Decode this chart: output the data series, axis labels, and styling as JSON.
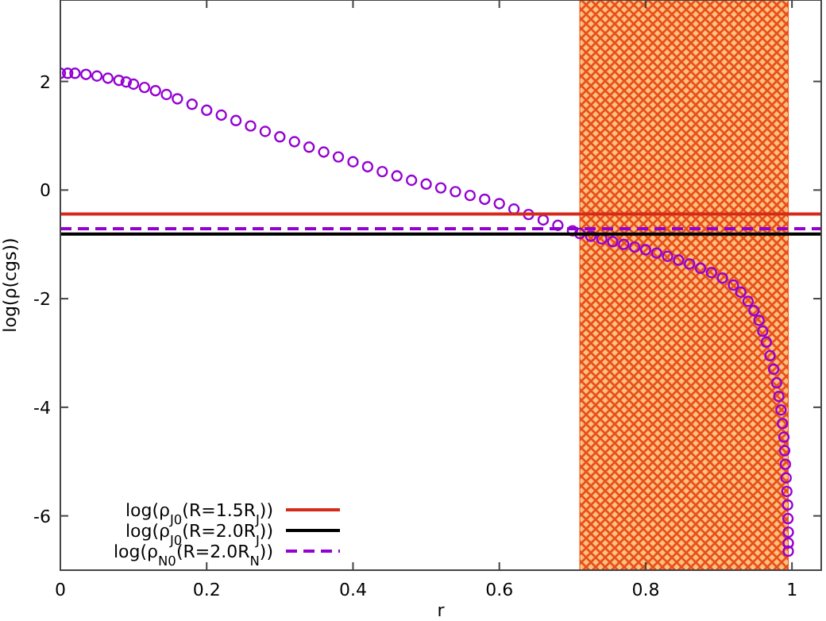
{
  "chart_data": {
    "type": "scatter",
    "xlabel": "r",
    "ylabel": "log(ρ(cgs))",
    "xlim": [
      0,
      1.04
    ],
    "ylim": [
      -7,
      3.5
    ],
    "xticks": [
      0,
      0.2,
      0.4,
      0.6,
      0.8,
      1
    ],
    "yticks": [
      -6,
      -4,
      -2,
      0,
      2
    ],
    "grid": false,
    "legend": "bottom left",
    "series": [
      {
        "color": "#9400d3",
        "marker": "circle",
        "x": [
          0,
          0.01,
          0.02,
          0.035,
          0.05,
          0.065,
          0.08,
          0.09,
          0.1,
          0.115,
          0.13,
          0.145,
          0.16,
          0.18,
          0.2,
          0.22,
          0.24,
          0.26,
          0.28,
          0.3,
          0.32,
          0.34,
          0.36,
          0.38,
          0.4,
          0.42,
          0.44,
          0.46,
          0.48,
          0.5,
          0.52,
          0.54,
          0.56,
          0.58,
          0.6,
          0.62,
          0.64,
          0.66,
          0.68,
          0.7,
          0.71,
          0.725,
          0.74,
          0.755,
          0.77,
          0.785,
          0.8,
          0.815,
          0.83,
          0.845,
          0.86,
          0.875,
          0.89,
          0.905,
          0.92,
          0.93,
          0.94,
          0.948,
          0.955,
          0.96,
          0.965,
          0.97,
          0.975,
          0.979,
          0.982,
          0.985,
          0.987,
          0.989,
          0.99,
          0.991,
          0.992,
          0.993,
          0.994,
          0.9945,
          0.995,
          0.995,
          0.995
        ],
        "values": [
          2.15,
          2.15,
          2.15,
          2.13,
          2.1,
          2.06,
          2.02,
          1.99,
          1.95,
          1.89,
          1.83,
          1.76,
          1.68,
          1.58,
          1.47,
          1.38,
          1.28,
          1.18,
          1.08,
          0.98,
          0.89,
          0.79,
          0.7,
          0.61,
          0.52,
          0.43,
          0.34,
          0.26,
          0.18,
          0.11,
          0.04,
          -0.03,
          -0.1,
          -0.17,
          -0.25,
          -0.35,
          -0.45,
          -0.55,
          -0.65,
          -0.75,
          -0.8,
          -0.85,
          -0.9,
          -0.95,
          -1.0,
          -1.05,
          -1.1,
          -1.16,
          -1.22,
          -1.29,
          -1.36,
          -1.44,
          -1.52,
          -1.62,
          -1.75,
          -1.88,
          -2.05,
          -2.22,
          -2.4,
          -2.6,
          -2.8,
          -3.05,
          -3.3,
          -3.55,
          -3.8,
          -4.05,
          -4.3,
          -4.55,
          -4.8,
          -5.05,
          -5.3,
          -5.55,
          -5.8,
          -6.05,
          -6.3,
          -6.5,
          -6.65
        ]
      },
      {
        "type": "line",
        "name": "log(ρ$_{J0}$(R=1.5R$_{J}$))",
        "color": "#d42a1a",
        "line_style": "solid",
        "marker": "none",
        "x": [
          0,
          1.04
        ],
        "values": [
          -0.44,
          -0.44
        ]
      },
      {
        "type": "line",
        "name": "log(ρ$_{J0}$(R=2.0R$_{J}$))",
        "color": "#000000",
        "line_style": "solid",
        "marker": "none",
        "x": [
          0,
          1.04
        ],
        "values": [
          -0.81,
          -0.81
        ]
      },
      {
        "type": "line",
        "name": "log(ρ$_{N0}$(R=2.0R$_{N}$))",
        "color": "#9400d3",
        "line_style": "dashed",
        "marker": "none",
        "x": [
          0,
          1.04
        ],
        "values": [
          -0.71,
          -0.71
        ]
      }
    ],
    "bands": [
      {
        "axis": "x",
        "from": 0.71,
        "to": 0.995,
        "color": "#e8501a"
      }
    ]
  }
}
